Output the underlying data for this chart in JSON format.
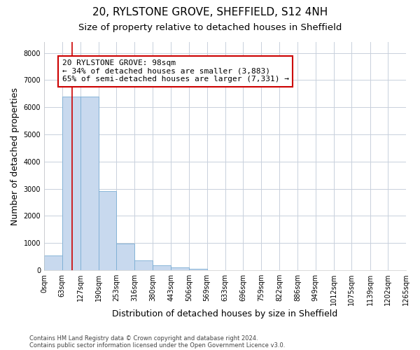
{
  "title1": "20, RYLSTONE GROVE, SHEFFIELD, S12 4NH",
  "title2": "Size of property relative to detached houses in Sheffield",
  "xlabel": "Distribution of detached houses by size in Sheffield",
  "ylabel": "Number of detached properties",
  "bin_edges": [
    0,
    63,
    127,
    190,
    253,
    316,
    380,
    443,
    506,
    569,
    633,
    696,
    759,
    822,
    886,
    949,
    1012,
    1075,
    1139,
    1202,
    1265
  ],
  "bar_heights": [
    550,
    6400,
    6400,
    2920,
    970,
    370,
    175,
    100,
    60,
    0,
    0,
    0,
    0,
    0,
    0,
    0,
    0,
    0,
    0,
    0
  ],
  "bar_color": "#c8d9ee",
  "bar_edge_color": "#7aadd4",
  "property_size": 98,
  "red_line_color": "#cc0000",
  "annotation_text": "20 RYLSTONE GROVE: 98sqm\n← 34% of detached houses are smaller (3,883)\n65% of semi-detached houses are larger (7,331) →",
  "annotation_box_color": "#ffffff",
  "annotation_box_edge_color": "#cc0000",
  "ylim": [
    0,
    8400
  ],
  "yticks": [
    0,
    1000,
    2000,
    3000,
    4000,
    5000,
    6000,
    7000,
    8000
  ],
  "footnote1": "Contains HM Land Registry data © Crown copyright and database right 2024.",
  "footnote2": "Contains public sector information licensed under the Open Government Licence v3.0.",
  "bg_color": "#ffffff",
  "grid_color": "#c8d0dc",
  "title1_fontsize": 11,
  "title2_fontsize": 9.5,
  "tick_label_fontsize": 7,
  "ylabel_fontsize": 9,
  "xlabel_fontsize": 9,
  "annot_fontsize": 8
}
